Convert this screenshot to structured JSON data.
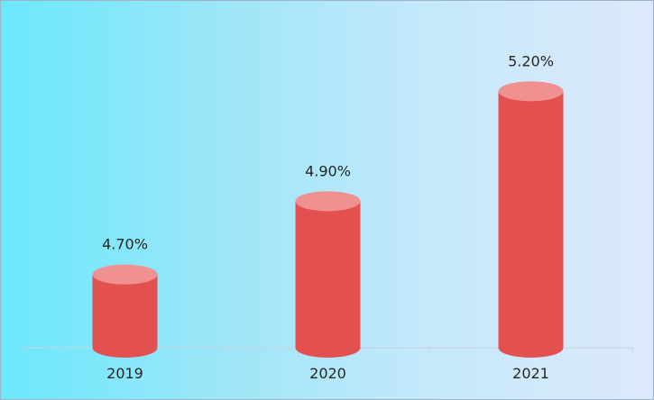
{
  "chart_data": {
    "type": "bar",
    "style": "cylinder",
    "categories": [
      "2019",
      "2020",
      "2021"
    ],
    "values": [
      4.7,
      4.9,
      5.2
    ],
    "data_labels": [
      "4.70%",
      "4.90%",
      "5.20%"
    ],
    "title": "",
    "xlabel": "",
    "ylabel": "",
    "ylim": [
      4.5,
      5.25
    ],
    "grid": false,
    "colors": {
      "bar": "#e35050",
      "bar_top": "#f09090",
      "axis": "#c8d3de",
      "text": "#262626"
    }
  }
}
